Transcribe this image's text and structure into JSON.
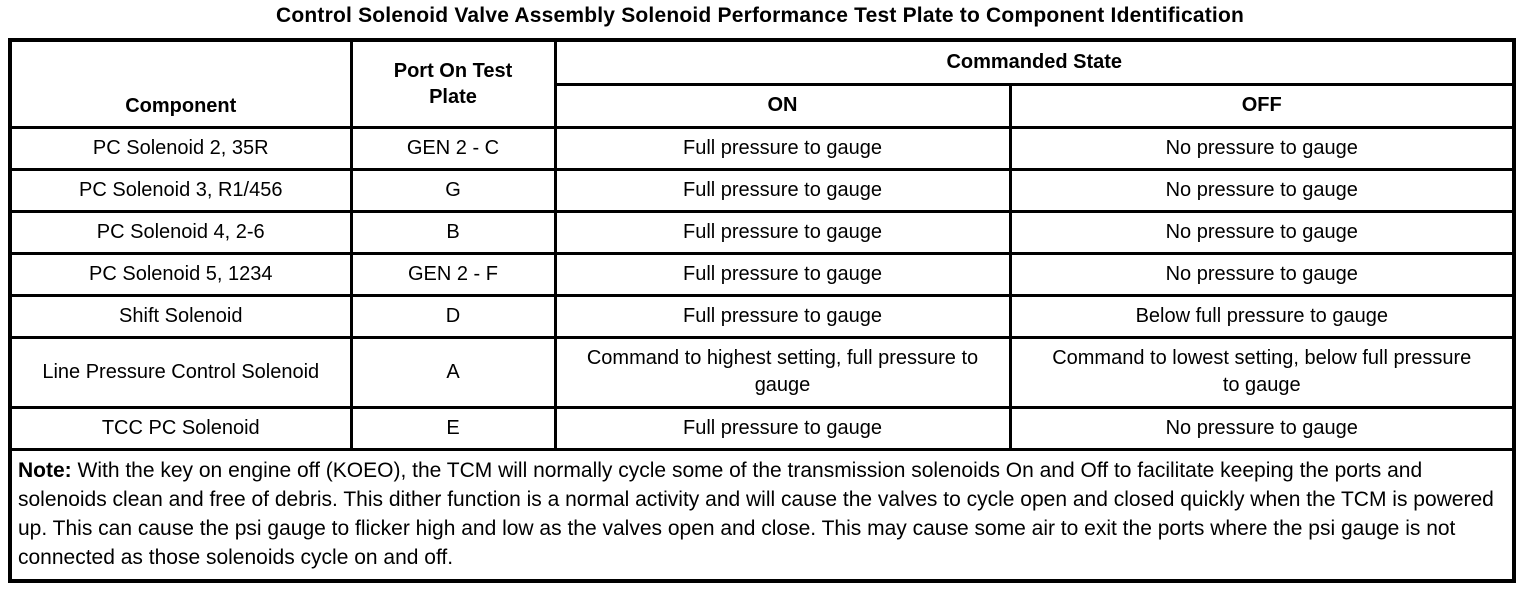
{
  "title": "Control Solenoid Valve Assembly Solenoid Performance Test Plate to Component Identification",
  "colors": {
    "text": "#000000",
    "background": "#ffffff",
    "border": "#000000"
  },
  "table": {
    "headers": {
      "component": "Component",
      "port": "Port On Test Plate",
      "commanded_state": "Commanded State",
      "on": "ON",
      "off": "OFF"
    },
    "rows": [
      {
        "component": "PC Solenoid 2, 35R",
        "port": "GEN 2 - C",
        "on": "Full pressure to gauge",
        "off": "No pressure to gauge"
      },
      {
        "component": "PC Solenoid 3, R1/456",
        "port": "G",
        "on": "Full pressure to gauge",
        "off": "No pressure to gauge"
      },
      {
        "component": "PC Solenoid 4, 2-6",
        "port": "B",
        "on": "Full pressure to gauge",
        "off": "No pressure to gauge"
      },
      {
        "component": "PC Solenoid 5, 1234",
        "port": "GEN 2 - F",
        "on": "Full pressure to gauge",
        "off": "No pressure to gauge"
      },
      {
        "component": "Shift Solenoid",
        "port": "D",
        "on": "Full pressure to gauge",
        "off": "Below full pressure to gauge"
      },
      {
        "component": "Line Pressure Control Solenoid",
        "port": "A",
        "on": "Command to highest setting, full pressure to gauge",
        "off": "Command to lowest setting, below full pressure to gauge"
      },
      {
        "component": "TCC PC Solenoid",
        "port": "E",
        "on": "Full pressure to gauge",
        "off": "No pressure to gauge"
      }
    ],
    "note": {
      "label": "Note:",
      "text": " With the key on engine off (KOEO), the TCM will normally cycle some of the transmission solenoids On and Off to facilitate keeping the ports and solenoids clean and free of debris. This dither function is a normal activity and will cause the valves to cycle open and closed quickly when the TCM is powered up. This can cause the psi gauge to flicker high and low as the valves open and close. This may cause some air to exit the ports where the psi gauge is not connected as those solenoids cycle on and off."
    }
  }
}
